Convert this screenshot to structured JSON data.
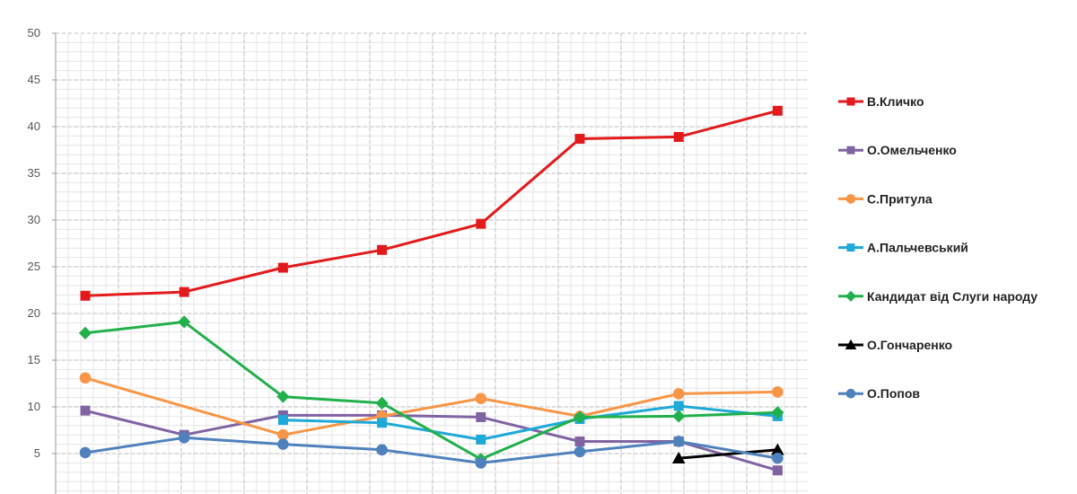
{
  "chart_data": {
    "type": "line",
    "title": "",
    "xlabel": "",
    "ylabel": "",
    "ylim": [
      5,
      50
    ],
    "yticks": [
      5,
      10,
      15,
      20,
      25,
      30,
      35,
      40,
      45,
      50
    ],
    "grid": true,
    "legend_position": "right",
    "x": [
      1,
      2,
      3,
      4,
      5,
      6,
      7,
      8
    ],
    "series": [
      {
        "name": "В.Кличко",
        "color": "#e31a1c",
        "marker": "square",
        "points": [
          [
            1,
            21.9
          ],
          [
            2,
            22.3
          ],
          [
            3,
            24.9
          ],
          [
            4,
            26.8
          ],
          [
            5,
            29.6
          ],
          [
            6,
            38.7
          ],
          [
            7,
            38.9
          ],
          [
            8,
            41.7
          ]
        ]
      },
      {
        "name": "О.Омельченко",
        "color": "#8064a2",
        "marker": "square",
        "points": [
          [
            1,
            9.6
          ],
          [
            2,
            7.0
          ],
          [
            3,
            9.1
          ],
          [
            4,
            9.1
          ],
          [
            5,
            8.9
          ],
          [
            6,
            6.3
          ],
          [
            7,
            6.3
          ],
          [
            8,
            3.2
          ]
        ]
      },
      {
        "name": "С.Притула",
        "color": "#f79646",
        "marker": "circle",
        "points": [
          [
            1,
            13.1
          ],
          [
            3,
            7.0
          ],
          [
            4,
            9.0
          ],
          [
            5,
            10.9
          ],
          [
            6,
            9.0
          ],
          [
            7,
            11.4
          ],
          [
            8,
            11.6
          ]
        ]
      },
      {
        "name": "А.Пальчевський",
        "color": "#1fa9d8",
        "marker": "square",
        "points": [
          [
            3,
            8.6
          ],
          [
            4,
            8.3
          ],
          [
            5,
            6.5
          ],
          [
            6,
            8.7
          ],
          [
            7,
            10.1
          ],
          [
            8,
            9.0
          ]
        ]
      },
      {
        "name": "Кандидат від Слуги народу",
        "color": "#21b04b",
        "marker": "diamond",
        "points": [
          [
            1,
            17.9
          ],
          [
            2,
            19.1
          ],
          [
            3,
            11.1
          ],
          [
            4,
            10.4
          ],
          [
            5,
            4.4
          ],
          [
            6,
            8.9
          ],
          [
            7,
            9.0
          ],
          [
            8,
            9.4
          ]
        ]
      },
      {
        "name": "О.Гончаренко",
        "color": "#000000",
        "marker": "triangle",
        "points": [
          [
            7,
            4.5
          ],
          [
            8,
            5.4
          ]
        ]
      },
      {
        "name": "О.Попов",
        "color": "#4f81bd",
        "marker": "circle",
        "points": [
          [
            1,
            5.1
          ],
          [
            2,
            6.7
          ],
          [
            3,
            6.0
          ],
          [
            4,
            5.4
          ],
          [
            5,
            4.0
          ],
          [
            6,
            5.2
          ],
          [
            7,
            6.3
          ],
          [
            8,
            4.5
          ]
        ]
      }
    ]
  }
}
